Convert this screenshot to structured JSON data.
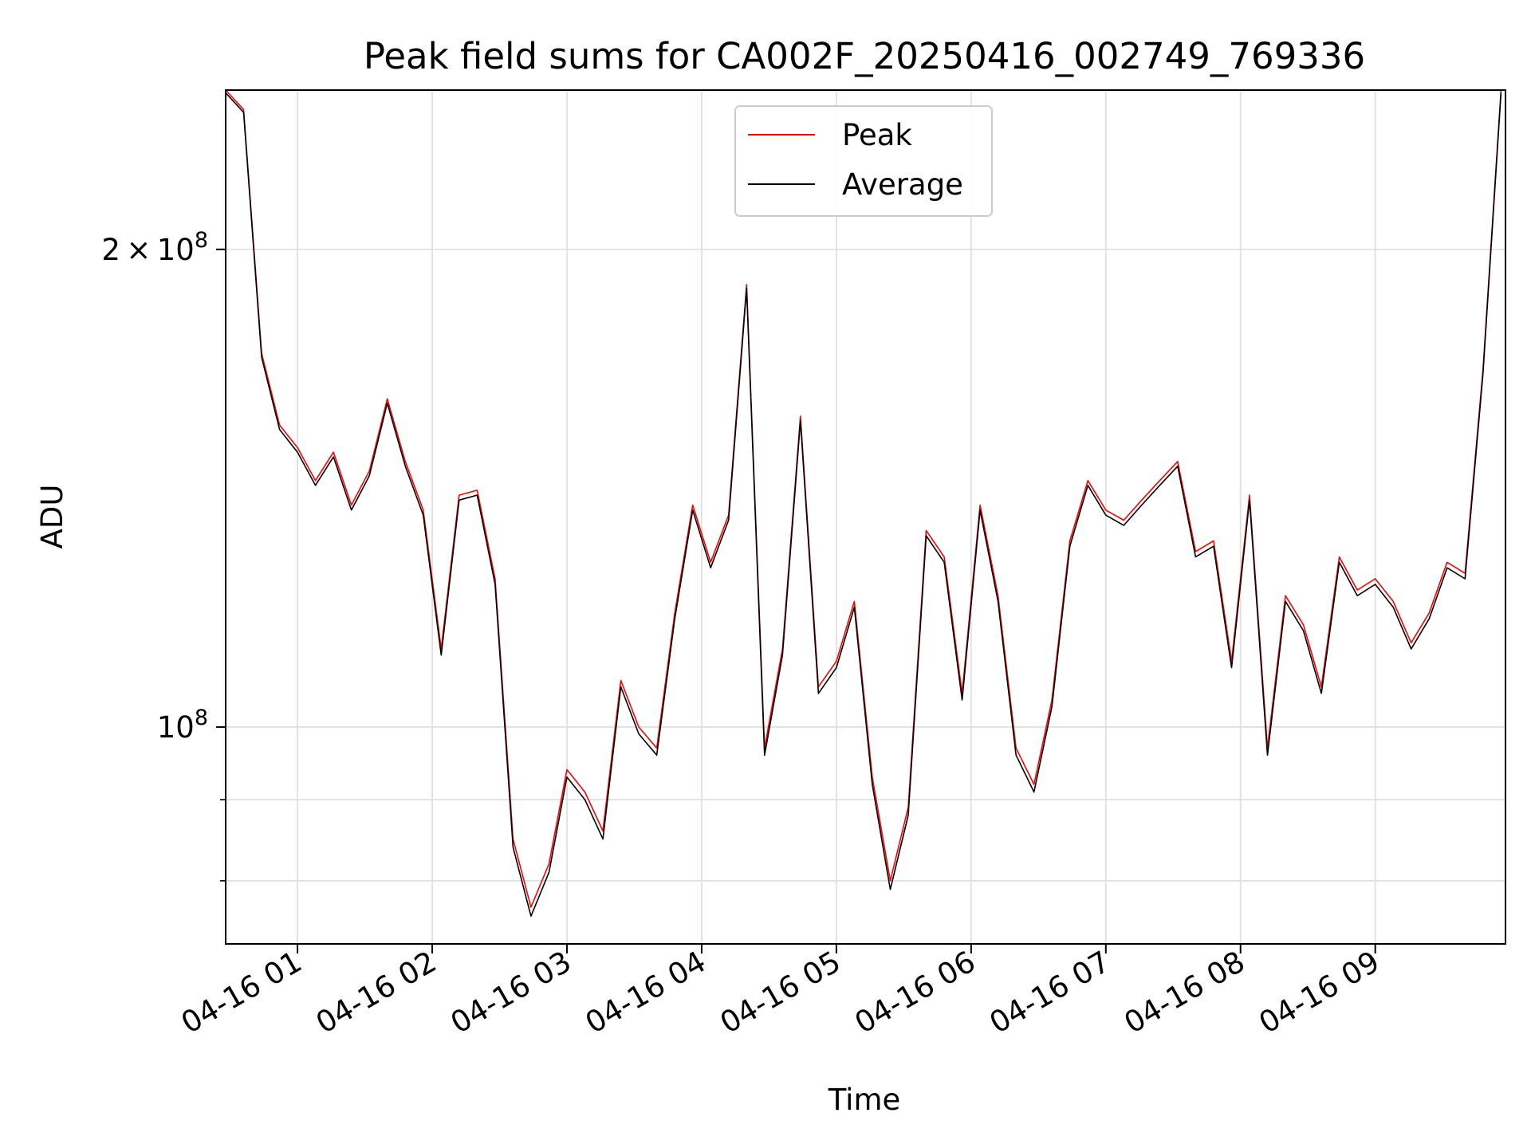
{
  "chart_data": {
    "type": "line",
    "title": "Peak field sums for CA002F_20250416_002749_769336",
    "xlabel": "Time",
    "ylabel": "ADU",
    "yscale": "log",
    "ylim": [
      73000000,
      252000000
    ],
    "xlim": [
      "2025-04-16 00:28",
      "2025-04-16 09:58"
    ],
    "grid": true,
    "legend_position": "top-center",
    "x_tick_labels": [
      "04-16 01",
      "04-16 02",
      "04-16 03",
      "04-16 04",
      "04-16 05",
      "04-16 06",
      "04-16 07",
      "04-16 08",
      "04-16 09"
    ],
    "y_tick_labels": [
      {
        "value": 100000000,
        "label": "10^8"
      },
      {
        "value": 200000000,
        "label": "2×10^8"
      }
    ],
    "x": [
      "00:28",
      "00:36",
      "00:44",
      "00:52",
      "01:00",
      "01:08",
      "01:16",
      "01:24",
      "01:32",
      "01:40",
      "01:48",
      "01:56",
      "02:04",
      "02:12",
      "02:20",
      "02:28",
      "02:36",
      "02:44",
      "02:52",
      "03:00",
      "03:08",
      "03:16",
      "03:24",
      "03:32",
      "03:40",
      "03:48",
      "03:56",
      "04:04",
      "04:12",
      "04:20",
      "04:28",
      "04:36",
      "04:44",
      "04:52",
      "05:00",
      "05:08",
      "05:16",
      "05:24",
      "05:32",
      "05:40",
      "05:48",
      "05:56",
      "06:04",
      "06:12",
      "06:20",
      "06:28",
      "06:36",
      "06:44",
      "06:52",
      "07:00",
      "07:08",
      "07:16",
      "07:24",
      "07:32",
      "07:40",
      "07:48",
      "07:56",
      "08:04",
      "08:12",
      "08:20",
      "08:28",
      "08:36",
      "08:44",
      "08:52",
      "09:00",
      "09:08",
      "09:16",
      "09:24",
      "09:32",
      "09:40",
      "09:48",
      "09:56"
    ],
    "series": [
      {
        "name": "Peak",
        "color": "#ff0000",
        "values": [
          252000000,
          245000000,
          172000000,
          155000000,
          150000000,
          143000000,
          149000000,
          138000000,
          145000000,
          161000000,
          147000000,
          137000000,
          112000000,
          140000000,
          141000000,
          124000000,
          85000000,
          77000000,
          82000000,
          94000000,
          91000000,
          86000000,
          107000000,
          100000000,
          97000000,
          118000000,
          138000000,
          127000000,
          136000000,
          190000000,
          97000000,
          112000000,
          157000000,
          106000000,
          110000000,
          120000000,
          93000000,
          80000000,
          89000000,
          133000000,
          128000000,
          105000000,
          138000000,
          121000000,
          97000000,
          92000000,
          104000000,
          131000000,
          143000000,
          137000000,
          135000000,
          139000000,
          143000000,
          147000000,
          129000000,
          131000000,
          110000000,
          140000000,
          97000000,
          121000000,
          116000000,
          106000000,
          128000000,
          122000000,
          124000000,
          120000000,
          113000000,
          118000000,
          127000000,
          125000000,
          168000000,
          252000000
        ]
      },
      {
        "name": "Average",
        "color": "#000000",
        "values": [
          251000000,
          244000000,
          171000000,
          154000000,
          149000000,
          142000000,
          148000000,
          137000000,
          144000000,
          160000000,
          146000000,
          136000000,
          111000000,
          139000000,
          140000000,
          123000000,
          84000000,
          76000000,
          81000000,
          93000000,
          90000000,
          85000000,
          106000000,
          99000000,
          96000000,
          117000000,
          137000000,
          126000000,
          135000000,
          189000000,
          96000000,
          111000000,
          156000000,
          105000000,
          109000000,
          119000000,
          92000000,
          79000000,
          88000000,
          132000000,
          127000000,
          104000000,
          137000000,
          120000000,
          96000000,
          91000000,
          103000000,
          130000000,
          142000000,
          136000000,
          134000000,
          138000000,
          142000000,
          146000000,
          128000000,
          130000000,
          109000000,
          139000000,
          96000000,
          120000000,
          115000000,
          105000000,
          127000000,
          121000000,
          123000000,
          119000000,
          112000000,
          117000000,
          126000000,
          124000000,
          167000000,
          251000000
        ]
      }
    ]
  }
}
